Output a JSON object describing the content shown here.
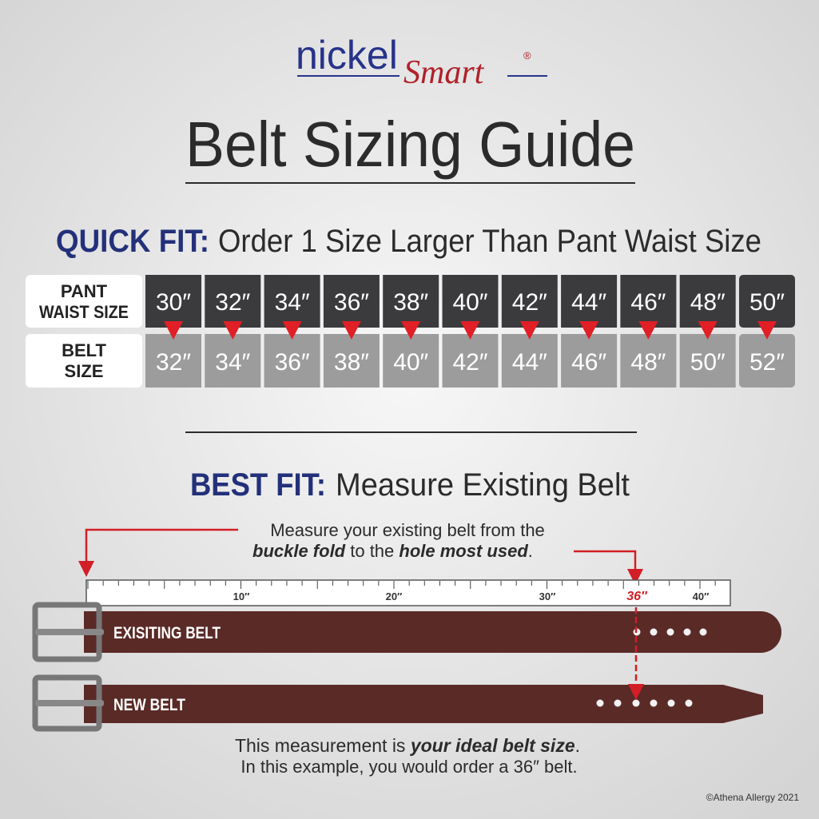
{
  "header": {
    "brand_main": "nickel",
    "brand_script": "Smart",
    "brand_mark": "®",
    "title": "Belt Sizing Guide"
  },
  "quick_fit": {
    "label": "QUICK FIT:",
    "text": "Order 1 Size Larger Than Pant Waist Size",
    "row_labels": [
      [
        "PANT",
        "WAIST SIZE"
      ],
      [
        "BELT",
        "SIZE"
      ]
    ],
    "waist_sizes": [
      "30″",
      "32″",
      "34″",
      "36″",
      "38″",
      "40″",
      "42″",
      "44″",
      "46″",
      "48″",
      "50″"
    ],
    "belt_sizes": [
      "32″",
      "34″",
      "36″",
      "38″",
      "40″",
      "42″",
      "44″",
      "46″",
      "48″",
      "50″",
      "52″"
    ]
  },
  "best_fit": {
    "label": "BEST FIT:",
    "text": "Measure Existing Belt",
    "instruction": {
      "line1": "Measure your existing belt from the",
      "part1": "buckle fold",
      "part2": " to the ",
      "part3": "hole most used",
      "part4": "."
    },
    "ruler_labels": [
      "10″",
      "20″",
      "30″",
      "36″",
      "40″"
    ],
    "existing_belt": "EXISITING BELT",
    "new_belt": "NEW BELT",
    "result": {
      "part1": "This measurement is ",
      "part2": "your ideal belt size",
      "part3": ".",
      "line2": "In this example, you would order a 36″ belt."
    }
  },
  "footer": {
    "copyright": "©Athena Allergy 2021"
  }
}
